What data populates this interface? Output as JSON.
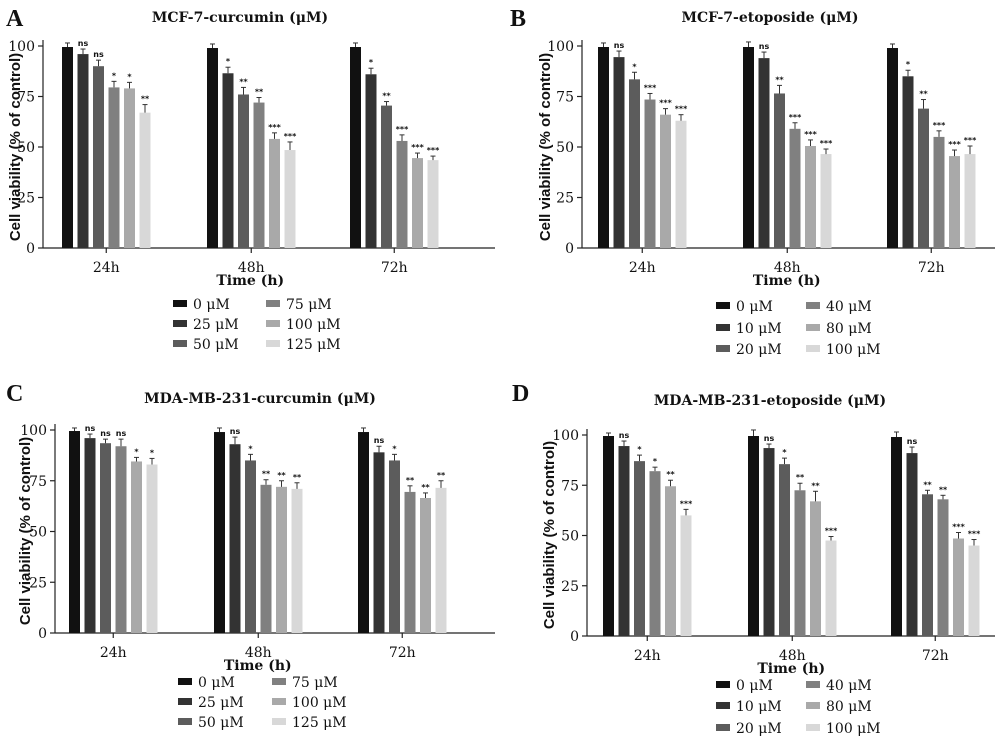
{
  "chart_data": [
    {
      "type": "bar",
      "letter": "A",
      "title": "MCF-7-curcumin (μM)",
      "xlabel": "Time (h)",
      "ylabel": "Cell viability (% of control)",
      "ylim": [
        0,
        100
      ],
      "yticks": [
        0,
        25,
        50,
        75,
        100
      ],
      "categories": [
        "24h",
        "48h",
        "72h"
      ],
      "series": [
        {
          "name": "0 μM",
          "color": "#111111",
          "values": [
            99.5,
            99.0,
            99.5
          ],
          "errors": [
            2,
            2,
            2
          ],
          "sig": [
            "",
            "",
            ""
          ]
        },
        {
          "name": "25 μM",
          "color": "#333333",
          "values": [
            96.0,
            86.5,
            86.0
          ],
          "errors": [
            2.5,
            3,
            3
          ],
          "sig": [
            "ns",
            "*",
            "*"
          ]
        },
        {
          "name": "50 μM",
          "color": "#5c5c5c",
          "values": [
            90.0,
            76.0,
            70.5
          ],
          "errors": [
            3,
            3.5,
            2
          ],
          "sig": [
            "ns",
            "**",
            "**"
          ]
        },
        {
          "name": "75 μM",
          "color": "#808080",
          "values": [
            79.5,
            72.0,
            53.0
          ],
          "errors": [
            3,
            2.5,
            3
          ],
          "sig": [
            "*",
            "**",
            "***"
          ]
        },
        {
          "name": "100 μM",
          "color": "#a9a9a9",
          "values": [
            79.0,
            54.0,
            44.5
          ],
          "errors": [
            3,
            3,
            2.5
          ],
          "sig": [
            "*",
            "***",
            "***"
          ]
        },
        {
          "name": "125 μM",
          "color": "#d8d8d8",
          "values": [
            67.0,
            48.5,
            43.5
          ],
          "errors": [
            4,
            4,
            2
          ],
          "sig": [
            "**",
            "***",
            "***"
          ]
        }
      ]
    },
    {
      "type": "bar",
      "letter": "B",
      "title": "MCF-7-etoposide (μM)",
      "xlabel": "Time (h)",
      "ylabel": "Cell viability (% of control)",
      "ylim": [
        0,
        100
      ],
      "yticks": [
        0,
        25,
        50,
        75,
        100
      ],
      "categories": [
        "24h",
        "48h",
        "72h"
      ],
      "series": [
        {
          "name": "0 μM",
          "color": "#111111",
          "values": [
            99.5,
            99.5,
            99.0
          ],
          "errors": [
            2,
            2.5,
            2
          ],
          "sig": [
            "",
            "",
            ""
          ]
        },
        {
          "name": "10 μM",
          "color": "#333333",
          "values": [
            94.5,
            94.0,
            85.0
          ],
          "errors": [
            3,
            3,
            3
          ],
          "sig": [
            "ns",
            "ns",
            "*"
          ]
        },
        {
          "name": "20 μM",
          "color": "#5c5c5c",
          "values": [
            83.5,
            76.5,
            69.0
          ],
          "errors": [
            3.5,
            4,
            4.5
          ],
          "sig": [
            "*",
            "**",
            "**"
          ]
        },
        {
          "name": "40 μM",
          "color": "#808080",
          "values": [
            73.5,
            59.0,
            55.0
          ],
          "errors": [
            3,
            3,
            3
          ],
          "sig": [
            "***",
            "***",
            "***"
          ]
        },
        {
          "name": "80 μM",
          "color": "#a9a9a9",
          "values": [
            66.0,
            50.5,
            45.5
          ],
          "errors": [
            3,
            3,
            3
          ],
          "sig": [
            "***",
            "***",
            "***"
          ]
        },
        {
          "name": "100 μM",
          "color": "#d8d8d8",
          "values": [
            63.0,
            46.5,
            46.5
          ],
          "errors": [
            3,
            2.5,
            4
          ],
          "sig": [
            "***",
            "***",
            "***"
          ]
        }
      ]
    },
    {
      "type": "bar",
      "letter": "C",
      "title": "MDA-MB-231-curcumin (μM)",
      "xlabel": "Time (h)",
      "ylabel": "Cell viability (% of control)",
      "ylim": [
        0,
        100
      ],
      "yticks": [
        0,
        25,
        50,
        75,
        100
      ],
      "categories": [
        "24h",
        "48h",
        "72h"
      ],
      "series": [
        {
          "name": "0 μM",
          "color": "#111111",
          "values": [
            99.5,
            99.0,
            99.0
          ],
          "errors": [
            1.5,
            2,
            2
          ],
          "sig": [
            "",
            "",
            ""
          ]
        },
        {
          "name": "25 μM",
          "color": "#333333",
          "values": [
            96.0,
            93.0,
            89.0
          ],
          "errors": [
            2,
            3.5,
            3
          ],
          "sig": [
            "ns",
            "ns",
            "ns"
          ]
        },
        {
          "name": "50 μM",
          "color": "#5c5c5c",
          "values": [
            93.5,
            85.0,
            85.0
          ],
          "errors": [
            2,
            3,
            3
          ],
          "sig": [
            "ns",
            "*",
            "*"
          ]
        },
        {
          "name": "75 μM",
          "color": "#808080",
          "values": [
            92.0,
            73.0,
            69.5
          ],
          "errors": [
            3.5,
            2.5,
            3
          ],
          "sig": [
            "ns",
            "**",
            "**"
          ]
        },
        {
          "name": "100 μM",
          "color": "#a9a9a9",
          "values": [
            84.5,
            72.0,
            66.5
          ],
          "errors": [
            2,
            3,
            2.5
          ],
          "sig": [
            "*",
            "**",
            "**"
          ]
        },
        {
          "name": "125 μM",
          "color": "#d8d8d8",
          "values": [
            83.0,
            71.0,
            71.5
          ],
          "errors": [
            3,
            3,
            3.5
          ],
          "sig": [
            "*",
            "**",
            "**"
          ]
        }
      ]
    },
    {
      "type": "bar",
      "letter": "D",
      "title": "MDA-MB-231-etoposide (μM)",
      "xlabel": "Time (h)",
      "ylabel": "Cell viability (% of control)",
      "ylim": [
        0,
        100
      ],
      "yticks": [
        0,
        25,
        50,
        75,
        100
      ],
      "categories": [
        "24h",
        "48h",
        "72h"
      ],
      "series": [
        {
          "name": "0 μM",
          "color": "#111111",
          "values": [
            99.5,
            99.5,
            99.0
          ],
          "errors": [
            1.5,
            3,
            2.5
          ],
          "sig": [
            "",
            "",
            ""
          ]
        },
        {
          "name": "10 μM",
          "color": "#333333",
          "values": [
            94.5,
            93.5,
            91.0
          ],
          "errors": [
            2.5,
            2,
            3
          ],
          "sig": [
            "ns",
            "ns",
            "ns"
          ]
        },
        {
          "name": "20 μM",
          "color": "#5c5c5c",
          "values": [
            87.0,
            85.5,
            70.5
          ],
          "errors": [
            3,
            3,
            2
          ],
          "sig": [
            "*",
            "*",
            "**"
          ]
        },
        {
          "name": "40 μM",
          "color": "#808080",
          "values": [
            82.0,
            72.5,
            68.0
          ],
          "errors": [
            2,
            3.5,
            2
          ],
          "sig": [
            "*",
            "**",
            "**"
          ]
        },
        {
          "name": "80 μM",
          "color": "#a9a9a9",
          "values": [
            74.5,
            67.0,
            48.5
          ],
          "errors": [
            3,
            5,
            3
          ],
          "sig": [
            "**",
            "**",
            "***"
          ]
        },
        {
          "name": "100 μM",
          "color": "#d8d8d8",
          "values": [
            60.0,
            47.5,
            45.0
          ],
          "errors": [
            3,
            2,
            3
          ],
          "sig": [
            "***",
            "***",
            "***"
          ]
        }
      ]
    }
  ]
}
